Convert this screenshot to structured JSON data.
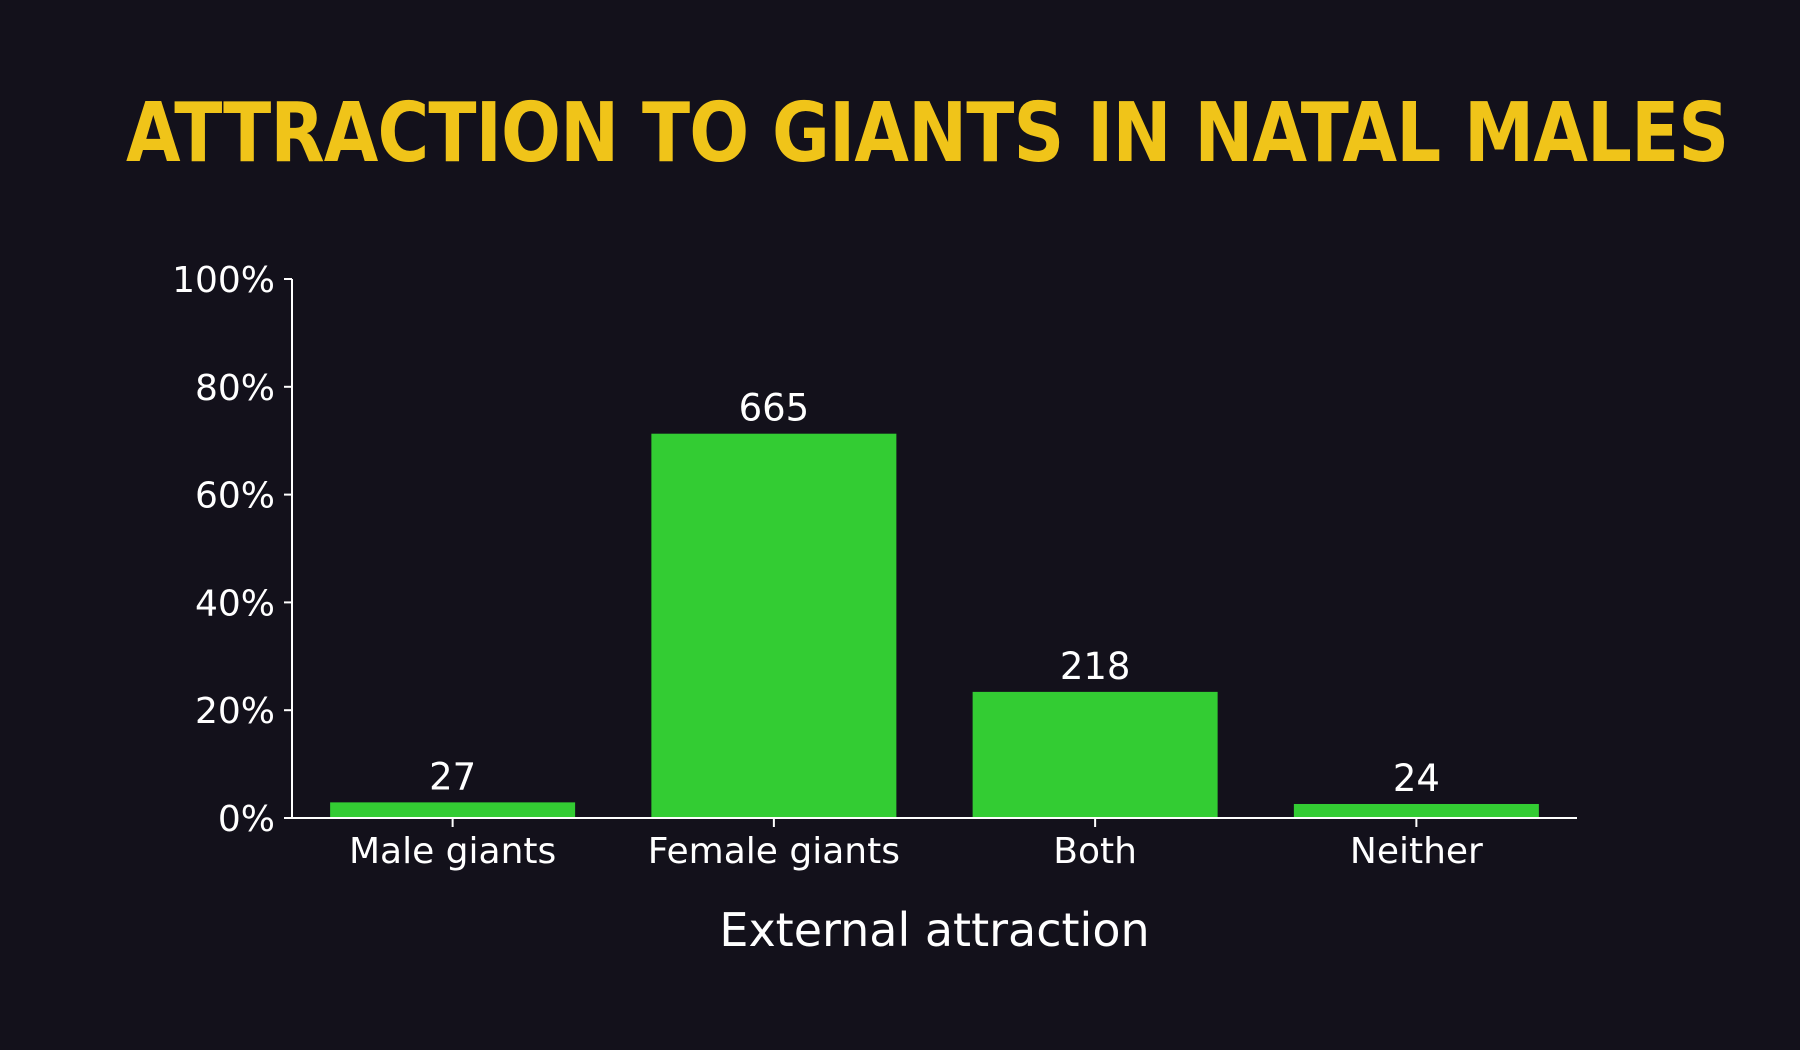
{
  "chart_data": {
    "type": "bar",
    "title": "ATTRACTION TO GIANTS IN NATAL MALES",
    "xlabel": "External attraction",
    "ylabel": "",
    "categories": [
      "Male giants",
      "Female giants",
      "Both",
      "Neither"
    ],
    "values": [
      2.9,
      71.3,
      23.4,
      2.6
    ],
    "value_labels": [
      "27",
      "665",
      "218",
      "24"
    ],
    "ylim": [
      0,
      100
    ],
    "yticks": [
      0,
      20,
      40,
      60,
      80,
      100
    ],
    "ytick_labels": [
      "0%",
      "20%",
      "40%",
      "60%",
      "80%",
      "100%"
    ],
    "grid": false,
    "legend": "none"
  },
  "colors": {
    "background": "#13111b",
    "title": "#f0c419",
    "bar": "#33cc33",
    "axis": "#ffffff",
    "text": "#ffffff"
  }
}
